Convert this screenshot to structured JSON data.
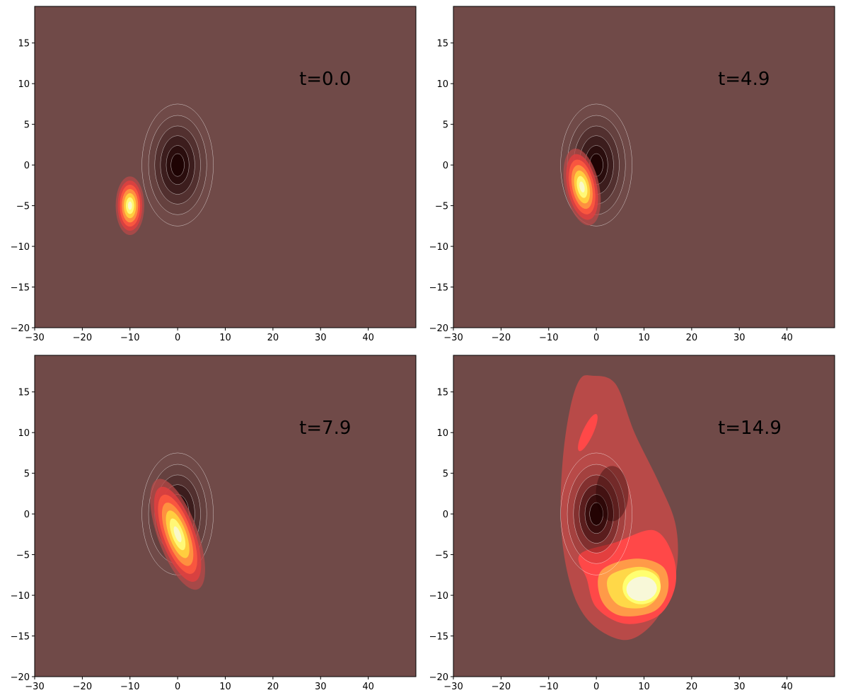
{
  "chart_data": [
    {
      "type": "contour",
      "annotation": "t=0.0",
      "xlim": [
        -30,
        50
      ],
      "ylim": [
        -20,
        19.5
      ],
      "xticks": [
        {
          "value": -30,
          "label": "−30"
        },
        {
          "value": -20,
          "label": "−20"
        },
        {
          "value": -10,
          "label": "−10"
        },
        0,
        10,
        20,
        30,
        40
      ],
      "yticks": [
        {
          "value": -20,
          "label": "−20"
        },
        {
          "value": -15,
          "label": "−15"
        },
        {
          "value": -10,
          "label": "−10"
        },
        {
          "value": -5,
          "label": "−5"
        },
        0,
        5,
        10,
        15
      ]
    },
    {
      "type": "contour",
      "annotation": "t=4.9",
      "xlim": [
        -30,
        50
      ],
      "ylim": [
        -20,
        19.5
      ],
      "xticks": [
        {
          "value": -30,
          "label": "−30"
        },
        {
          "value": -20,
          "label": "−20"
        },
        {
          "value": -10,
          "label": "−10"
        },
        0,
        10,
        20,
        30,
        40
      ],
      "yticks": [
        {
          "value": -20,
          "label": "−20"
        },
        {
          "value": -15,
          "label": "−15"
        },
        {
          "value": -10,
          "label": "−10"
        },
        {
          "value": -5,
          "label": "−5"
        },
        0,
        5,
        10,
        15
      ]
    },
    {
      "type": "contour",
      "annotation": "t=7.9",
      "xlim": [
        -30,
        50
      ],
      "ylim": [
        -20,
        19.5
      ],
      "xticks": [
        {
          "value": -30,
          "label": "−30"
        },
        {
          "value": -20,
          "label": "−20"
        },
        {
          "value": -10,
          "label": "−10"
        },
        0,
        10,
        20,
        30,
        40
      ],
      "yticks": [
        {
          "value": -20,
          "label": "−20"
        },
        {
          "value": -15,
          "label": "−15"
        },
        {
          "value": -10,
          "label": "−10"
        },
        {
          "value": -5,
          "label": "−5"
        },
        0,
        5,
        10,
        15
      ]
    },
    {
      "type": "contour",
      "annotation": "t=14.9",
      "xlim": [
        -30,
        50
      ],
      "ylim": [
        -20,
        19.5
      ],
      "xticks": [
        {
          "value": -30,
          "label": "−30"
        },
        {
          "value": -20,
          "label": "−20"
        },
        {
          "value": -10,
          "label": "−10"
        },
        0,
        10,
        20,
        30,
        40
      ],
      "yticks": [
        {
          "value": -20,
          "label": "−20"
        },
        {
          "value": -15,
          "label": "−15"
        },
        {
          "value": -10,
          "label": "−10"
        },
        {
          "value": -5,
          "label": "−5"
        },
        0,
        5,
        10,
        15
      ]
    }
  ]
}
